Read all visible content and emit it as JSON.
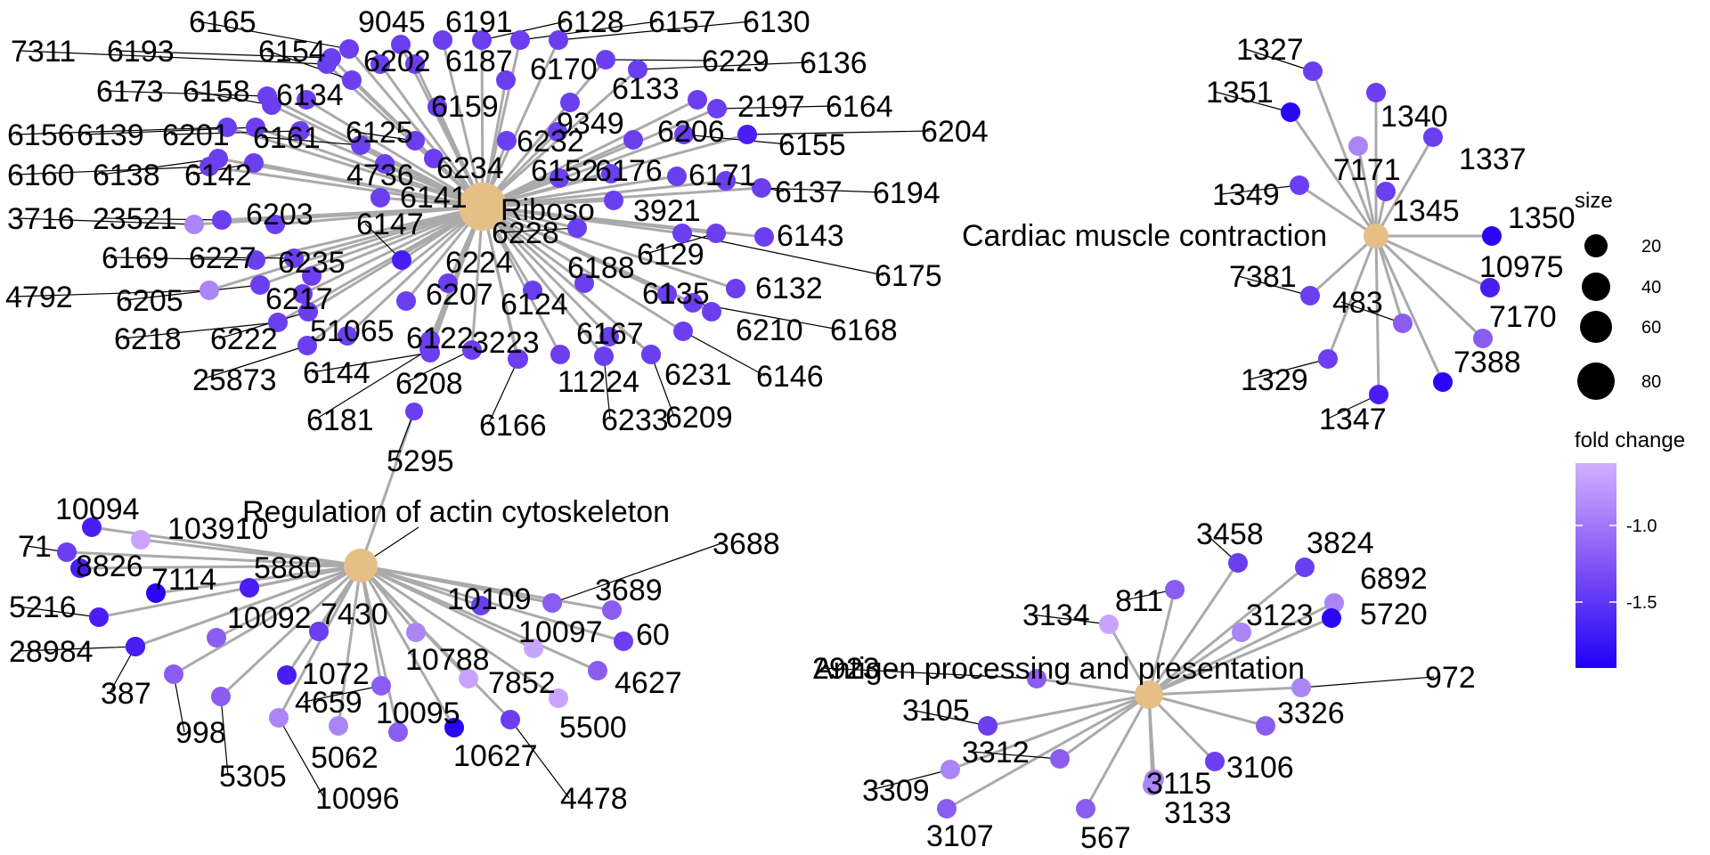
{
  "chart_data": {
    "type": "network",
    "title": "",
    "categories": [
      {
        "id": "ribosome",
        "label": "Riboso"
      },
      {
        "id": "cardiac",
        "label": "Cardiac muscle contraction"
      },
      {
        "id": "actin",
        "label": "Regulation of actin cytoskeleton"
      },
      {
        "id": "antigen",
        "label": "Antigen processing and presentation"
      }
    ],
    "genes": {
      "ribosome": [
        "6165",
        "9045",
        "6191",
        "6128",
        "6157",
        "6130",
        "7311",
        "6193",
        "6154",
        "6202",
        "6187",
        "6170",
        "6229",
        "6136",
        "6173",
        "6158",
        "6134",
        "6159",
        "6133",
        "2197",
        "6164",
        "6156",
        "6139",
        "6201",
        "6161",
        "6125",
        "9349",
        "6206",
        "6155",
        "6204",
        "6232",
        "6160",
        "6138",
        "6142",
        "4736",
        "6234",
        "6152",
        "6176",
        "6171",
        "6141",
        "3921",
        "6137",
        "6194",
        "3716",
        "23521",
        "6203",
        "6147",
        "6228",
        "6143",
        "6169",
        "6227",
        "6235",
        "6129",
        "6175",
        "6224",
        "6188",
        "4792",
        "6205",
        "6217",
        "6207",
        "6124",
        "6132",
        "6135",
        "6218",
        "6222",
        "51065",
        "6122",
        "6167",
        "6210",
        "6168",
        "3223",
        "25873",
        "6144",
        "11224",
        "6231",
        "6146",
        "6208",
        "6181",
        "6166",
        "6233",
        "6209"
      ],
      "cardiac": [
        "1327",
        "1351",
        "1340",
        "1337",
        "7171",
        "1349",
        "1345",
        "1350",
        "10975",
        "7381",
        "483",
        "7170",
        "7388",
        "1329",
        "1347"
      ],
      "actin": [
        "5295",
        "10094",
        "103910",
        "71",
        "8826",
        "7114",
        "5880",
        "5216",
        "10109",
        "3689",
        "3688",
        "10092",
        "7430",
        "10097",
        "60",
        "28984",
        "387",
        "1072",
        "10788",
        "4627",
        "998",
        "4659",
        "7852",
        "5305",
        "10095",
        "5062",
        "5500",
        "10627",
        "10096",
        "4478"
      ],
      "antigen": [
        "3458",
        "3824",
        "6892",
        "811",
        "3134",
        "3123",
        "5720",
        "2923",
        "972",
        "3105",
        "3326",
        "3312",
        "3106",
        "3309",
        "3115",
        "3133",
        "3107",
        "567"
      ]
    },
    "legend": {
      "size_title": "size",
      "size_ticks": [
        "20",
        "40",
        "60",
        "80"
      ],
      "color_title": "fold change",
      "color_ticks": [
        "-1.0",
        "-1.5"
      ],
      "color_low": "#1f00f7",
      "color_high": "#c9a4ff"
    },
    "colors": {
      "category_node": "#e6bf87",
      "edge": "#aaaaaa",
      "label_line": "#000000"
    }
  }
}
